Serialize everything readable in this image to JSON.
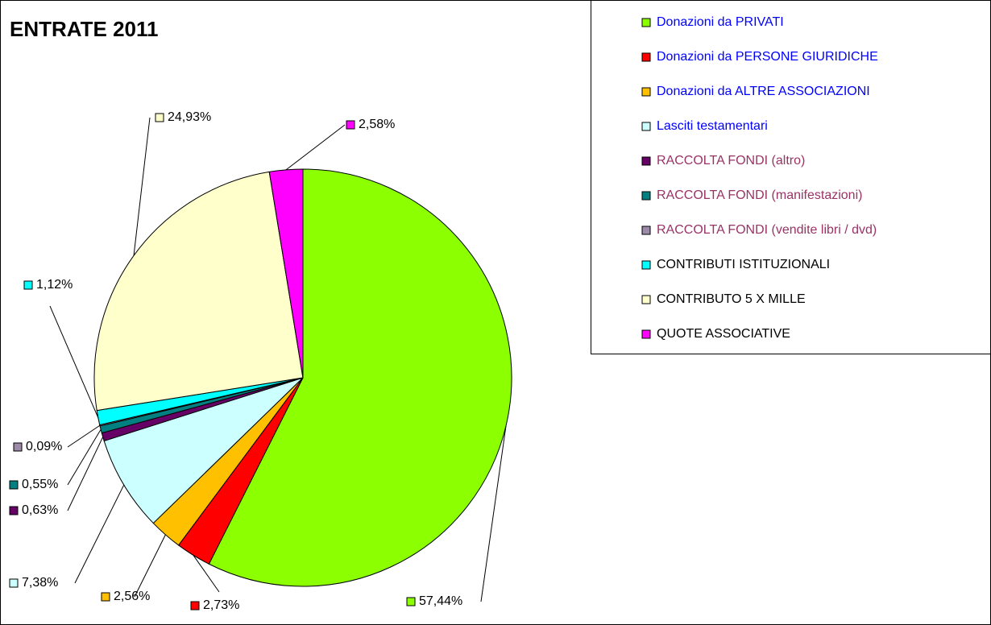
{
  "chart_data": {
    "type": "pie",
    "title": "ENTRATE 2011",
    "categories": [
      "Donazioni da PRIVATI",
      "Donazioni da PERSONE GIURIDICHE",
      "Donazioni da ALTRE ASSOCIAZIONI",
      "Lasciti testamentari",
      "RACCOLTA FONDI (altro)",
      "RACCOLTA FONDI (manifestazioni)",
      "RACCOLTA FONDI (vendite libri / dvd)",
      "CONTRIBUTI ISTITUZIONALI",
      "CONTRIBUTO 5 X MILLE",
      "QUOTE ASSOCIATIVE"
    ],
    "values": [
      57.44,
      2.73,
      2.56,
      7.38,
      0.63,
      0.55,
      0.09,
      1.12,
      24.93,
      2.58
    ],
    "value_labels": [
      "57,44%",
      "2,73%",
      "2,56%",
      "7,38%",
      "0,63%",
      "0,55%",
      "0,09%",
      "1,12%",
      "24,93%",
      "2,58%"
    ],
    "colors": [
      "#8cff00",
      "#ff0000",
      "#ffc000",
      "#ccffff",
      "#660066",
      "#008080",
      "#9d8aa8",
      "#00ffff",
      "#ffffcc",
      "#ff00ff"
    ],
    "legend_text_colors": [
      "#0000ff",
      "#0000ff",
      "#0000ff",
      "#0000ff",
      "#993366",
      "#993366",
      "#993366",
      "#000000",
      "#000000",
      "#000000"
    ],
    "legend": "right"
  }
}
